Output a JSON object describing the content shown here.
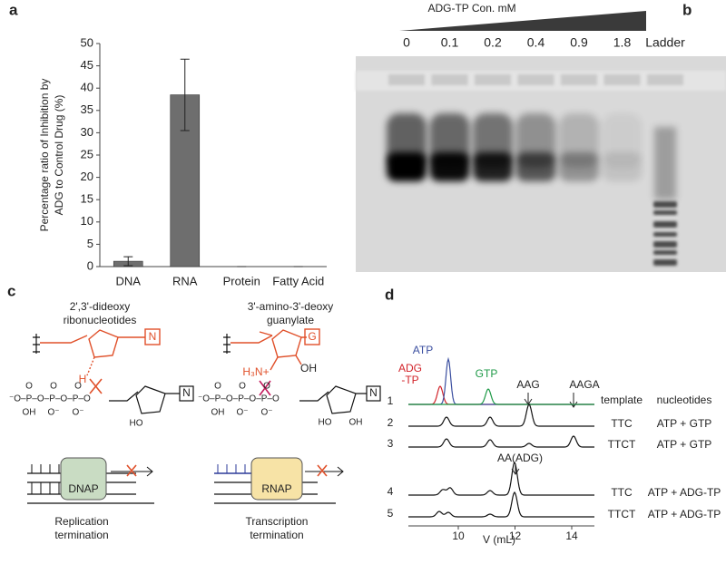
{
  "chart_data": {
    "type": "bar",
    "panel_label": "a",
    "ylabel": [
      "Percentage ratio of Inhibition by",
      "ADG to Control Drug (%)"
    ],
    "categories": [
      "DNA",
      "RNA",
      "Protein",
      "Fatty Acid"
    ],
    "values": [
      1.2,
      38.5,
      0,
      0
    ],
    "errors": [
      1.0,
      8.0,
      0,
      0
    ],
    "color": "#6e6e6e",
    "ylim": [
      0,
      50
    ],
    "yticks": [
      0,
      5,
      10,
      15,
      20,
      25,
      30,
      35,
      40,
      45,
      50
    ]
  },
  "gel": {
    "panel_label": "b",
    "title": "ADG-TP Con. mM",
    "lanes": [
      "0",
      "0.1",
      "0.2",
      "0.4",
      "0.9",
      "1.8",
      "Ladder"
    ]
  },
  "mechanism": {
    "panel_label": "c",
    "left": {
      "title": [
        "2',3'-dideoxy",
        "ribonucleotides"
      ],
      "base": "N",
      "attack": "H",
      "nucleotide_base": "N",
      "sugar_oh": "HO",
      "polymerase": "DNAP",
      "caption": [
        "Replication",
        "termination"
      ]
    },
    "right": {
      "title": [
        "3'-amino-3'-deoxy",
        "guanylate"
      ],
      "base": "G",
      "attack": "H₃N+",
      "hydroxyl": "OH",
      "nucleotide_base": "N",
      "sugar_oh": [
        "HO",
        "OH"
      ],
      "polymerase": "RNAP",
      "caption": [
        "Transcription",
        "termination"
      ]
    },
    "phosphate": {
      "above": [
        "O",
        "O",
        "O"
      ],
      "chain": "⁻O–P–O–P–O–P–O",
      "below": [
        "OH",
        "O⁻",
        "O⁻"
      ]
    }
  },
  "chromatogram": {
    "panel_label": "d",
    "peaks": {
      "atp": "ATP",
      "adg": [
        "ADG",
        "-TP"
      ],
      "gtp": "GTP",
      "aag": "AAG",
      "aaga": "AAGA",
      "aa_adg": "AA(ADG)"
    },
    "column_headers": [
      "template",
      "nucleotides"
    ],
    "rows": [
      {
        "index": "1"
      },
      {
        "index": "2",
        "template": "TTC",
        "nucleotides": "ATP + GTP"
      },
      {
        "index": "3",
        "template": "TTCT",
        "nucleotides": "ATP + GTP"
      },
      {
        "index": "4",
        "template": "TTC",
        "nucleotides": "ATP + ADG-TP"
      },
      {
        "index": "5",
        "template": "TTCT",
        "nucleotides": "ATP + ADG-TP"
      }
    ],
    "xlabel": "V (mL)",
    "xlim": [
      8.24,
      14.8
    ],
    "xticks": [
      10,
      12,
      14
    ]
  }
}
